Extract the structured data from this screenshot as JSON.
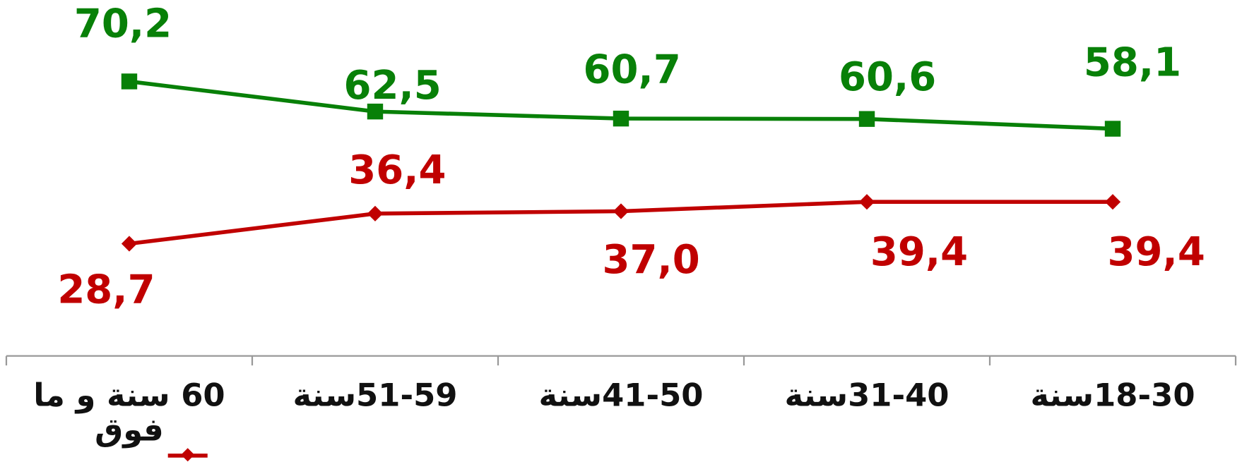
{
  "chart_data": {
    "type": "line",
    "categories": [
      "60 سنة و ما فوق",
      "51-59سنة",
      "41-50سنة",
      "31-40سنة",
      "18-30سنة"
    ],
    "series": [
      {
        "color": "#088008",
        "marker": "square",
        "values": [
          70.2,
          62.5,
          60.7,
          60.6,
          58.1
        ],
        "value_labels": [
          "70,2",
          "62,5",
          "60,7",
          "60,6",
          "58,1"
        ]
      },
      {
        "color": "#c00000",
        "marker": "diamond",
        "values": [
          28.7,
          36.4,
          37.0,
          39.4,
          39.4
        ],
        "value_labels": [
          "28,7",
          "36,4",
          "37,0",
          "39,4",
          "39,4"
        ]
      }
    ],
    "ylim": [
      0,
      91
    ]
  }
}
